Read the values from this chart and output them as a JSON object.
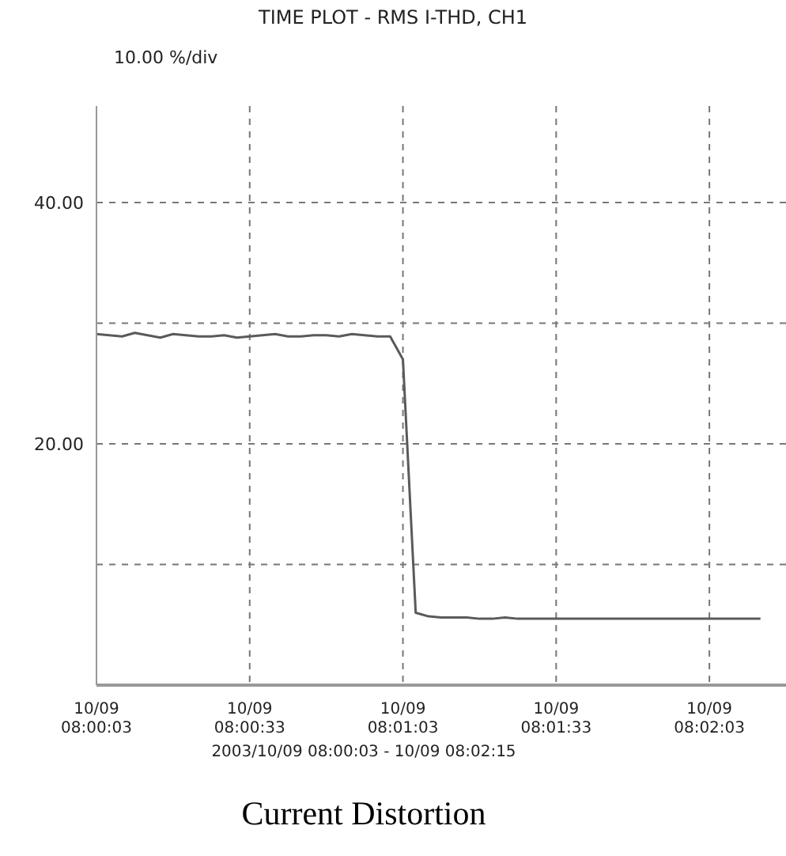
{
  "chart_data": {
    "type": "line",
    "title": "TIME PLOT - RMS I-THD, CH1",
    "subtitle": "10.00 %/div",
    "annotations": [
      "2003/10/09 08:00:03 - 10/09 08:02:15",
      "Current Distortion"
    ],
    "categories": [
      "10/09\n08:00:03",
      null,
      null,
      null,
      null,
      null,
      null,
      null,
      null,
      null,
      null,
      null,
      "10/09\n08:00:33",
      null,
      null,
      null,
      null,
      null,
      null,
      null,
      null,
      null,
      null,
      null,
      "10/09\n08:01:03",
      null,
      null,
      null,
      null,
      null,
      null,
      null,
      null,
      null,
      null,
      null,
      "10/09\n08:01:33",
      null,
      null,
      null,
      null,
      null,
      null,
      null,
      null,
      null,
      null,
      null,
      "10/09\n08:02:03",
      null,
      null,
      null,
      null,
      null,
      null
    ],
    "series": [
      {
        "color": "#5a5a5a",
        "values": [
          29.1,
          29.0,
          28.9,
          29.2,
          29.0,
          28.8,
          29.1,
          29.0,
          28.9,
          28.9,
          29.0,
          28.8,
          28.9,
          29.0,
          29.1,
          28.9,
          28.9,
          29.0,
          29.0,
          28.9,
          29.1,
          29.0,
          28.9,
          28.9,
          27,
          6,
          5.7,
          5.6,
          5.6,
          5.6,
          5.5,
          5.5,
          5.6,
          5.5,
          5.5,
          5.5,
          5.5,
          5.5,
          5.5,
          5.5,
          5.5,
          5.5,
          5.5,
          5.5,
          5.5,
          5.5,
          5.5,
          5.5,
          5.5,
          5.5,
          5.5,
          5.5,
          5.5,
          null,
          null
        ]
      }
    ],
    "ylim": [
      0,
      48
    ],
    "yticks": [
      {
        "value": 10,
        "label": null
      },
      {
        "value": 20,
        "label": "20.00"
      },
      {
        "value": 30,
        "label": null
      },
      {
        "value": 40,
        "label": "40.00"
      }
    ],
    "grid": true,
    "line_style": "solid"
  }
}
